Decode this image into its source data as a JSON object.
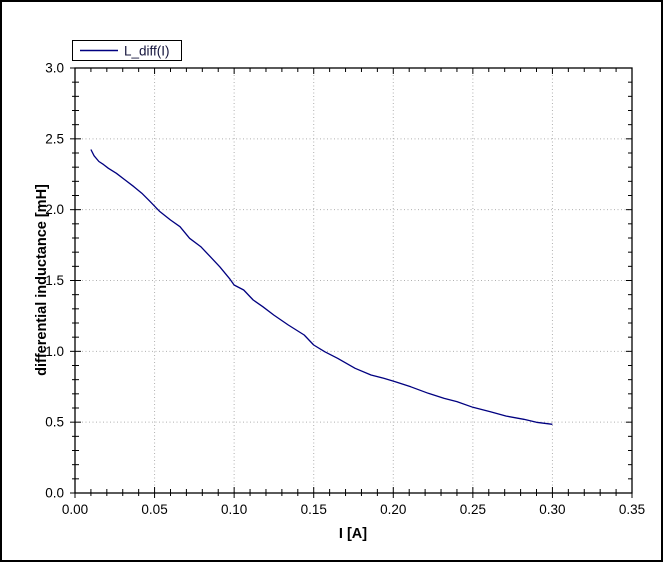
{
  "window": {
    "background": "#ffffff",
    "border_color": "#000000"
  },
  "legend": {
    "label": "L_diff(I)",
    "line_color": "#000080",
    "box_border_color": "#000000",
    "position": "top-left"
  },
  "chart_data": {
    "type": "line",
    "title": "",
    "xlabel": "I [A]",
    "ylabel": "differential inductance [mH]",
    "xlim": [
      0.0,
      0.35
    ],
    "ylim": [
      0.0,
      3.0
    ],
    "x_major_ticks": [
      0.0,
      0.05,
      0.1,
      0.15,
      0.2,
      0.25,
      0.3,
      0.35
    ],
    "x_tick_labels": [
      "0.00",
      "0.05",
      "0.10",
      "0.15",
      "0.20",
      "0.25",
      "0.30",
      "0.35"
    ],
    "y_major_ticks": [
      0.0,
      0.5,
      1.0,
      1.5,
      2.0,
      2.5,
      3.0
    ],
    "y_tick_labels": [
      "0.0",
      "0.5",
      "1.0",
      "1.5",
      "2.0",
      "2.5",
      "3.0"
    ],
    "x_minor_step": 0.01,
    "y_minor_step": 0.1,
    "grid": "dotted, at major ticks only",
    "grid_color": "#b0b0b0",
    "axis_color": "#000000",
    "line_color": "#000080",
    "legend_position": "top-left",
    "series": [
      {
        "name": "L_diff(I)",
        "points": [
          [
            0.01,
            2.425
          ],
          [
            0.012,
            2.38
          ],
          [
            0.015,
            2.34
          ],
          [
            0.018,
            2.318
          ],
          [
            0.021,
            2.292
          ],
          [
            0.026,
            2.257
          ],
          [
            0.031,
            2.214
          ],
          [
            0.037,
            2.162
          ],
          [
            0.042,
            2.116
          ],
          [
            0.047,
            2.06
          ],
          [
            0.053,
            1.99
          ],
          [
            0.06,
            1.927
          ],
          [
            0.066,
            1.88
          ],
          [
            0.072,
            1.798
          ],
          [
            0.079,
            1.739
          ],
          [
            0.085,
            1.668
          ],
          [
            0.091,
            1.597
          ],
          [
            0.097,
            1.515
          ],
          [
            0.1,
            1.468
          ],
          [
            0.106,
            1.433
          ],
          [
            0.112,
            1.362
          ],
          [
            0.118,
            1.315
          ],
          [
            0.125,
            1.256
          ],
          [
            0.134,
            1.186
          ],
          [
            0.144,
            1.115
          ],
          [
            0.15,
            1.045
          ],
          [
            0.157,
            0.997
          ],
          [
            0.165,
            0.951
          ],
          [
            0.176,
            0.88
          ],
          [
            0.186,
            0.833
          ],
          [
            0.194,
            0.81
          ],
          [
            0.201,
            0.786
          ],
          [
            0.211,
            0.75
          ],
          [
            0.222,
            0.704
          ],
          [
            0.232,
            0.668
          ],
          [
            0.24,
            0.645
          ],
          [
            0.25,
            0.605
          ],
          [
            0.261,
            0.574
          ],
          [
            0.271,
            0.543
          ],
          [
            0.282,
            0.52
          ],
          [
            0.29,
            0.499
          ],
          [
            0.3,
            0.485
          ]
        ]
      }
    ]
  }
}
